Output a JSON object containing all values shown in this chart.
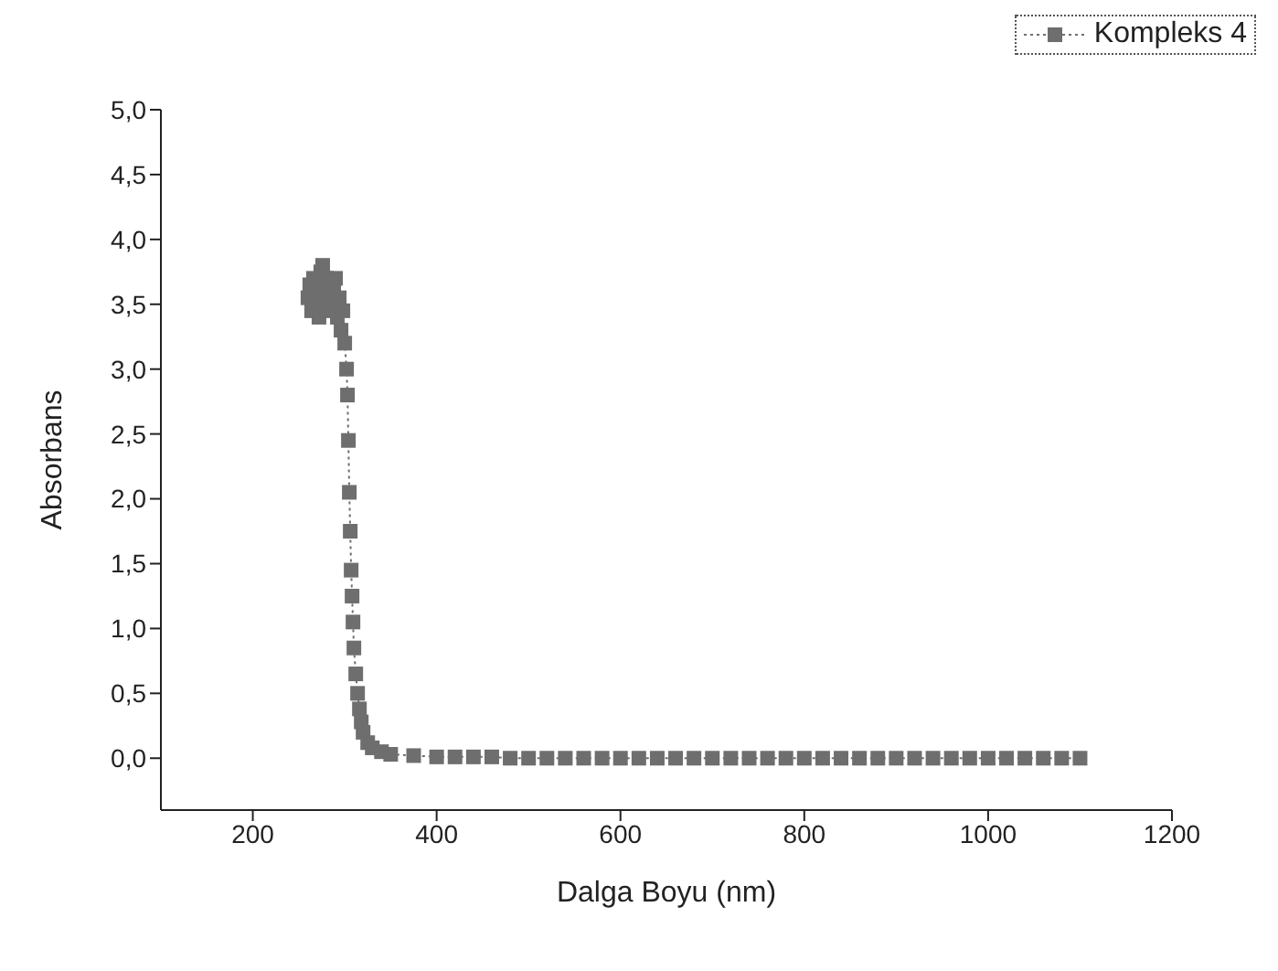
{
  "chart_data": {
    "type": "line",
    "xlabel": "Dalga Boyu (nm)",
    "ylabel": "Absorbans",
    "xlim": [
      100,
      1200
    ],
    "xticks": [
      200,
      400,
      600,
      800,
      1000,
      1200
    ],
    "ylim": [
      -0.4,
      5.0
    ],
    "yticks": [
      {
        "value": 0,
        "label": "0,0"
      },
      {
        "value": 0.5,
        "label": "0,5"
      },
      {
        "value": 1,
        "label": "1,0"
      },
      {
        "value": 1.5,
        "label": "1,5"
      },
      {
        "value": 2,
        "label": "2,0"
      },
      {
        "value": 2.5,
        "label": "2,5"
      },
      {
        "value": 3,
        "label": "3,0"
      },
      {
        "value": 3.5,
        "label": "3,5"
      },
      {
        "value": 4,
        "label": "4,0"
      },
      {
        "value": 4.5,
        "label": "4,5"
      },
      {
        "value": 5,
        "label": "5,0"
      }
    ],
    "grid": false,
    "legend": "top right",
    "marker": "square",
    "line_style": "dotted",
    "x": [
      260,
      262,
      264,
      266,
      268,
      270,
      272,
      274,
      276,
      278,
      280,
      282,
      284,
      286,
      288,
      290,
      292,
      294,
      296,
      298,
      300,
      302,
      303,
      304,
      305,
      306,
      307,
      308,
      309,
      310,
      312,
      314,
      316,
      318,
      320,
      325,
      330,
      340,
      350,
      375,
      400,
      420,
      440,
      460,
      480,
      500,
      520,
      540,
      560,
      580,
      600,
      620,
      640,
      660,
      680,
      700,
      720,
      740,
      760,
      780,
      800,
      820,
      840,
      860,
      880,
      900,
      920,
      940,
      960,
      980,
      1000,
      1020,
      1040,
      1060,
      1080,
      1100
    ],
    "series": [
      {
        "name": "Kompleks 4",
        "color": "#6e6e6e",
        "values": [
          3.55,
          3.65,
          3.45,
          3.7,
          3.5,
          3.6,
          3.4,
          3.75,
          3.8,
          3.55,
          3.7,
          3.5,
          3.65,
          3.45,
          3.6,
          3.7,
          3.4,
          3.55,
          3.3,
          3.45,
          3.2,
          3.0,
          2.8,
          2.45,
          2.05,
          1.75,
          1.45,
          1.25,
          1.05,
          0.85,
          0.65,
          0.5,
          0.38,
          0.28,
          0.2,
          0.12,
          0.08,
          0.05,
          0.03,
          0.02,
          0.01,
          0.01,
          0.01,
          0.01,
          0,
          0,
          0,
          0,
          0,
          0,
          0,
          0,
          0,
          0,
          0,
          0,
          0,
          0,
          0,
          0,
          0,
          0,
          0,
          0,
          0,
          0,
          0,
          0,
          0,
          0,
          0,
          0,
          0,
          0,
          0,
          0
        ]
      }
    ]
  }
}
